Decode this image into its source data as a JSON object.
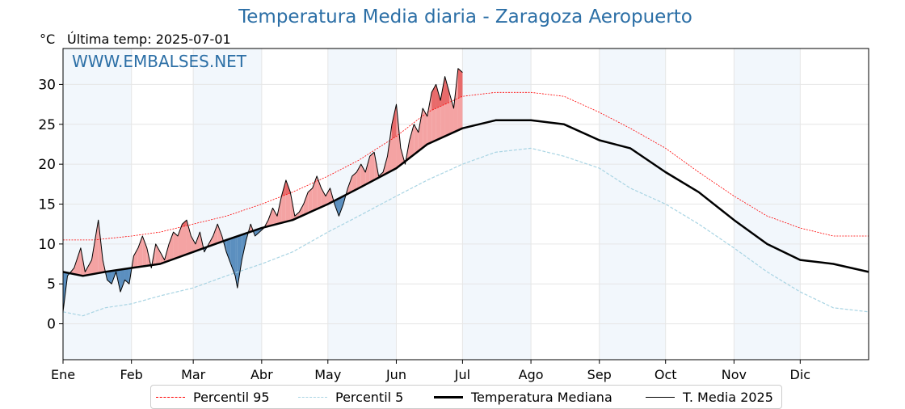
{
  "title": "Temperatura Media diaria - Zaragoza Aeropuerto",
  "unit": "°C",
  "last_temp": "Última temp: 2025-07-01",
  "watermark": "WWW.EMBALSES.NET",
  "colors": {
    "title": "#2c6fa6",
    "p95": "#ff0000",
    "p5": "#a8d4e3",
    "median": "#000000",
    "media2025": "#000000",
    "above_fill": "#f4a3a3",
    "above_fill_strong": "#e86a6a",
    "below_fill": "#5b8fbf",
    "band": "#eaf2fa"
  },
  "legend": {
    "p95": "Percentil 95",
    "p5": "Percentil 5",
    "median": "Temperatura Mediana",
    "media2025": "T. Media 2025"
  },
  "chart_data": {
    "type": "line",
    "title": "Temperatura Media diaria - Zaragoza Aeropuerto",
    "ylabel": "°C",
    "ylim": [
      -4.5,
      34.5
    ],
    "yticks": [
      0,
      5,
      10,
      15,
      20,
      25,
      30
    ],
    "xlim": [
      1,
      366
    ],
    "months": [
      "Ene",
      "Feb",
      "Mar",
      "Abr",
      "May",
      "Jun",
      "Jul",
      "Ago",
      "Sep",
      "Oct",
      "Nov",
      "Dic"
    ],
    "month_days": [
      1,
      32,
      60,
      91,
      121,
      152,
      182,
      213,
      244,
      274,
      305,
      335
    ],
    "grid": true,
    "legend_position": "bottom",
    "series": [
      {
        "name": "Percentil 95",
        "key": "p95",
        "points": [
          [
            1,
            10.5
          ],
          [
            15,
            10.5
          ],
          [
            32,
            11
          ],
          [
            45,
            11.5
          ],
          [
            60,
            12.5
          ],
          [
            75,
            13.5
          ],
          [
            91,
            15
          ],
          [
            105,
            16.5
          ],
          [
            121,
            18.5
          ],
          [
            135,
            20.5
          ],
          [
            152,
            23.5
          ],
          [
            166,
            26.5
          ],
          [
            182,
            28.5
          ],
          [
            197,
            29
          ],
          [
            213,
            29
          ],
          [
            228,
            28.5
          ],
          [
            244,
            26.5
          ],
          [
            258,
            24.5
          ],
          [
            274,
            22
          ],
          [
            289,
            19
          ],
          [
            305,
            16
          ],
          [
            320,
            13.5
          ],
          [
            335,
            12
          ],
          [
            350,
            11
          ],
          [
            366,
            11
          ]
        ]
      },
      {
        "name": "Percentil 5",
        "key": "p5",
        "points": [
          [
            1,
            1.5
          ],
          [
            10,
            1
          ],
          [
            20,
            2
          ],
          [
            32,
            2.5
          ],
          [
            45,
            3.5
          ],
          [
            60,
            4.5
          ],
          [
            75,
            6
          ],
          [
            91,
            7.5
          ],
          [
            105,
            9
          ],
          [
            121,
            11.5
          ],
          [
            135,
            13.5
          ],
          [
            152,
            16
          ],
          [
            166,
            18
          ],
          [
            182,
            20
          ],
          [
            197,
            21.5
          ],
          [
            213,
            22
          ],
          [
            228,
            21
          ],
          [
            244,
            19.5
          ],
          [
            258,
            17
          ],
          [
            274,
            15
          ],
          [
            289,
            12.5
          ],
          [
            305,
            9.5
          ],
          [
            320,
            6.5
          ],
          [
            335,
            4
          ],
          [
            350,
            2
          ],
          [
            366,
            1.5
          ]
        ]
      },
      {
        "name": "Temperatura Mediana",
        "key": "median",
        "points": [
          [
            1,
            6.5
          ],
          [
            10,
            6
          ],
          [
            20,
            6.5
          ],
          [
            32,
            7
          ],
          [
            45,
            7.5
          ],
          [
            60,
            9
          ],
          [
            75,
            10.5
          ],
          [
            91,
            12
          ],
          [
            105,
            13
          ],
          [
            121,
            15
          ],
          [
            135,
            17
          ],
          [
            152,
            19.5
          ],
          [
            166,
            22.5
          ],
          [
            182,
            24.5
          ],
          [
            197,
            25.5
          ],
          [
            213,
            25.5
          ],
          [
            228,
            25
          ],
          [
            244,
            23
          ],
          [
            258,
            22
          ],
          [
            274,
            19
          ],
          [
            289,
            16.5
          ],
          [
            305,
            13
          ],
          [
            320,
            10
          ],
          [
            335,
            8
          ],
          [
            350,
            7.5
          ],
          [
            366,
            6.5
          ]
        ]
      },
      {
        "name": "T. Media 2025",
        "key": "media2025",
        "points": [
          [
            1,
            1.5
          ],
          [
            3,
            6
          ],
          [
            6,
            7
          ],
          [
            9,
            9.5
          ],
          [
            11,
            6.5
          ],
          [
            14,
            8
          ],
          [
            17,
            13
          ],
          [
            19,
            8
          ],
          [
            21,
            5.5
          ],
          [
            23,
            5
          ],
          [
            25,
            6.5
          ],
          [
            27,
            4
          ],
          [
            29,
            5.5
          ],
          [
            31,
            5
          ],
          [
            33,
            8.5
          ],
          [
            35,
            9.5
          ],
          [
            37,
            11
          ],
          [
            39,
            9.5
          ],
          [
            41,
            7
          ],
          [
            43,
            10
          ],
          [
            45,
            9
          ],
          [
            47,
            8
          ],
          [
            49,
            10
          ],
          [
            51,
            11.5
          ],
          [
            53,
            11
          ],
          [
            55,
            12.5
          ],
          [
            57,
            13
          ],
          [
            59,
            11
          ],
          [
            61,
            10
          ],
          [
            63,
            11.5
          ],
          [
            65,
            9
          ],
          [
            67,
            10
          ],
          [
            69,
            11
          ],
          [
            71,
            12.5
          ],
          [
            73,
            11
          ],
          [
            75,
            9
          ],
          [
            77,
            7.5
          ],
          [
            79,
            6
          ],
          [
            80,
            4.5
          ],
          [
            82,
            8
          ],
          [
            84,
            10.5
          ],
          [
            86,
            12.5
          ],
          [
            88,
            11
          ],
          [
            90,
            11.5
          ],
          [
            92,
            12
          ],
          [
            94,
            13
          ],
          [
            96,
            14.5
          ],
          [
            98,
            13.5
          ],
          [
            100,
            16
          ],
          [
            102,
            18
          ],
          [
            104,
            16.5
          ],
          [
            106,
            13.5
          ],
          [
            108,
            14
          ],
          [
            110,
            15
          ],
          [
            112,
            16.5
          ],
          [
            114,
            17
          ],
          [
            116,
            18.5
          ],
          [
            118,
            17
          ],
          [
            120,
            16
          ],
          [
            122,
            17
          ],
          [
            124,
            15
          ],
          [
            126,
            13.5
          ],
          [
            128,
            15
          ],
          [
            130,
            17
          ],
          [
            132,
            18.5
          ],
          [
            134,
            19
          ],
          [
            136,
            20
          ],
          [
            138,
            19
          ],
          [
            140,
            21
          ],
          [
            142,
            21.5
          ],
          [
            144,
            18.5
          ],
          [
            146,
            19
          ],
          [
            148,
            21
          ],
          [
            150,
            25
          ],
          [
            152,
            27.5
          ],
          [
            154,
            22
          ],
          [
            156,
            20
          ],
          [
            158,
            23
          ],
          [
            160,
            25
          ],
          [
            162,
            24
          ],
          [
            164,
            27
          ],
          [
            166,
            26
          ],
          [
            168,
            29
          ],
          [
            170,
            30
          ],
          [
            172,
            28
          ],
          [
            174,
            31
          ],
          [
            176,
            29
          ],
          [
            178,
            27
          ],
          [
            180,
            32
          ],
          [
            182,
            31.5
          ]
        ]
      }
    ]
  }
}
